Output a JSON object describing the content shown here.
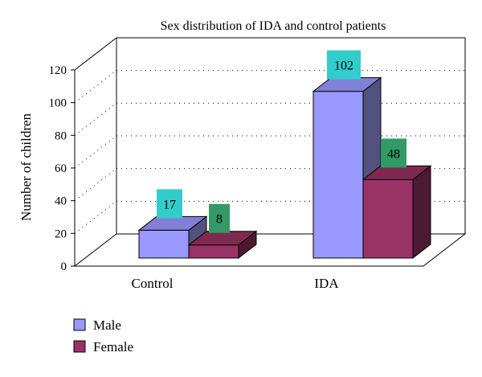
{
  "chart_data": {
    "type": "bar",
    "title": "Sex distribution of IDA and control patients",
    "xlabel": "",
    "ylabel": "Number of children",
    "categories": [
      "Control",
      "IDA"
    ],
    "series": [
      {
        "name": "Male",
        "values": [
          17,
          102
        ]
      },
      {
        "name": "Female",
        "values": [
          8,
          48
        ]
      }
    ],
    "ylim": [
      0,
      120
    ],
    "yticks": [
      "0",
      "20",
      "40",
      "60",
      "80",
      "100",
      "120"
    ],
    "grid": true,
    "legend_position": "bottom-left",
    "three_d": true
  },
  "colors": {
    "male_front": "#9999ff",
    "male_side": "#52527f",
    "male_top": "#8080d6",
    "female_front": "#993366",
    "female_side": "#4d1a33",
    "female_top": "#80294f",
    "label_bg_male": "#33cccc",
    "label_bg_female": "#339966"
  }
}
